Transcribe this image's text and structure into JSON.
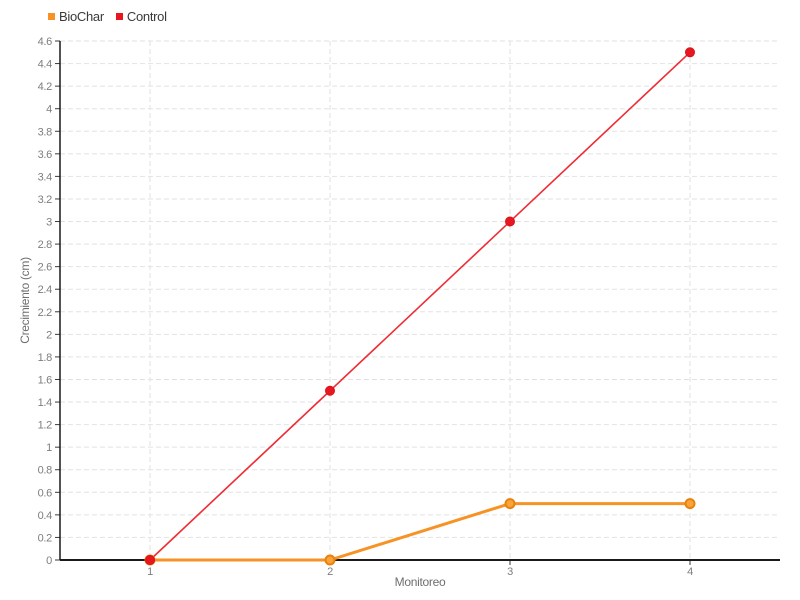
{
  "chart_data": {
    "type": "line",
    "x": [
      1,
      2,
      3,
      4
    ],
    "series": [
      {
        "name": "BioChar",
        "values": [
          0,
          0,
          0.5,
          0.5
        ],
        "line_color": "#f79224",
        "line_width": 3,
        "point_fill": "#fba238",
        "point_stroke": "#e8820e",
        "point_stroke_width": 2,
        "point_radius": 4.5
      },
      {
        "name": "Control",
        "values": [
          0,
          1.5,
          3,
          4.5
        ],
        "line_color": "#ef2b33",
        "line_width": 1.6,
        "point_fill": "#e8171f",
        "point_stroke": "#d8141b",
        "point_stroke_width": 1,
        "point_radius": 4.5
      }
    ],
    "xlabel": "Monitoreo",
    "ylabel": "Crecimiento (cm)",
    "ylim": [
      0,
      4.6
    ],
    "ytick_step": 0.2,
    "xticks": [
      "1",
      "2",
      "3",
      "4"
    ],
    "grid": true,
    "grid_color": "#e2e2e2",
    "axis_color": "#1a1a1a",
    "tick_label_color": "#7d7d7d",
    "legend_position": "top-left",
    "background": "#ffffff"
  }
}
